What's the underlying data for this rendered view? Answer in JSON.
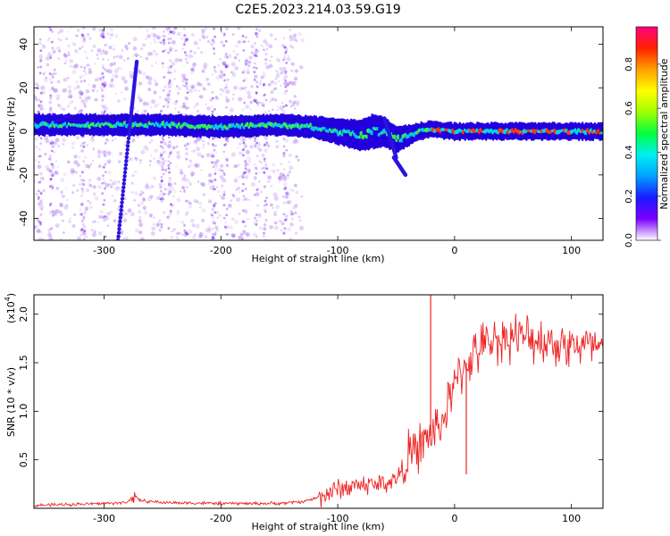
{
  "title": "C2E5.2023.214.03.59.G19",
  "colors": {
    "snr_line": "#ee2222",
    "band_core": "#00ddee",
    "band_edge": "#2200dd",
    "scatter": "#9955ee",
    "plot_bg": "#ffffff",
    "frame": "#000000"
  },
  "colorbar": {
    "label": "Normalized spectral amplitude",
    "ticks": [
      "0.0",
      "0.2",
      "0.4",
      "0.6",
      "0.8"
    ],
    "tick_values": [
      0.0,
      0.2,
      0.4,
      0.6,
      0.8
    ],
    "range": [
      0.0,
      0.97
    ],
    "stops": [
      "#ffffff",
      "#7a00ff",
      "#1a1aff",
      "#00a0ff",
      "#00f0f0",
      "#00ff40",
      "#a0ff00",
      "#ffff00",
      "#ffa000",
      "#ff2000",
      "#ff0080"
    ]
  },
  "chart_data": [
    {
      "type": "heatmap",
      "xlabel": "Height of straight line (km)",
      "ylabel": "Frequency (Hz)",
      "xlim": [
        -360,
        127
      ],
      "ylim": [
        -50,
        48
      ],
      "xticks": [
        -300,
        -200,
        -100,
        0,
        100
      ],
      "xtick_labels": [
        "-300",
        "-200",
        "-100",
        "0",
        "100"
      ],
      "yticks": [
        -40,
        -20,
        0,
        20,
        40
      ],
      "ytick_labels": [
        "-40",
        "-20",
        "0",
        "20",
        "40"
      ],
      "band": {
        "x": [
          -360,
          -300,
          -250,
          -200,
          -150,
          -120,
          -100,
          -80,
          -70,
          -60,
          -50,
          -40,
          -30,
          -20,
          0,
          50,
          100,
          127
        ],
        "center": [
          3,
          3,
          3,
          2,
          3,
          2,
          0,
          -2,
          0,
          0,
          -4,
          -2,
          0,
          1,
          0,
          0,
          0,
          0
        ],
        "width": [
          3,
          3,
          3,
          3,
          3,
          3,
          4,
          5,
          6,
          5,
          4,
          3,
          2,
          2,
          2,
          2,
          2,
          2
        ]
      },
      "streaks": [
        {
          "x": [
            -288,
            -278
          ],
          "y": [
            -50,
            2
          ]
        },
        {
          "x": [
            -278,
            -272
          ],
          "y": [
            2,
            32
          ]
        },
        {
          "x": [
            -60,
            -50
          ],
          "y": [
            6,
            -12
          ]
        },
        {
          "x": [
            -52,
            -42
          ],
          "y": [
            -12,
            -20
          ]
        }
      ]
    },
    {
      "type": "line",
      "xlabel": "Height of straight line (km)",
      "ylabel": "SNR (10 * v/v)",
      "ylabel_multiplier": "(x10",
      "ylabel_multiplier_exp": "4",
      "ylabel_multiplier_close": ")",
      "xlim": [
        -360,
        127
      ],
      "ylim": [
        0,
        2.2
      ],
      "xticks": [
        -300,
        -200,
        -100,
        0,
        100
      ],
      "xtick_labels": [
        "-300",
        "-200",
        "-100",
        "0",
        "100"
      ],
      "yticks": [
        0.5,
        1.0,
        1.5,
        2.0
      ],
      "ytick_labels": [
        "0.5",
        "1.0",
        "1.5",
        "2.0"
      ],
      "series": [
        {
          "x": [
            -360,
            -300,
            -280,
            -275,
            -270,
            -250,
            -200,
            -150,
            -130,
            -120,
            -110,
            -100,
            -90,
            -80,
            -70,
            -60,
            -50,
            -45,
            -40,
            -35,
            -30,
            -25,
            -20,
            -15,
            -10,
            -5,
            0,
            5,
            10,
            20,
            30,
            40,
            50,
            60,
            70,
            80,
            90,
            100,
            110,
            120,
            127
          ],
          "y": [
            0.03,
            0.05,
            0.06,
            0.14,
            0.08,
            0.06,
            0.05,
            0.05,
            0.07,
            0.1,
            0.15,
            0.2,
            0.22,
            0.25,
            0.24,
            0.26,
            0.3,
            0.4,
            0.55,
            0.55,
            0.65,
            0.7,
            0.75,
            0.85,
            0.9,
            1.1,
            1.25,
            1.4,
            1.5,
            1.62,
            1.72,
            1.75,
            1.78,
            1.75,
            1.75,
            1.72,
            1.7,
            1.68,
            1.68,
            1.65,
            1.62
          ],
          "spikes": [
            {
              "x": -20.5,
              "y": 2.2
            },
            {
              "x": 10,
              "y": 0.35
            }
          ]
        }
      ]
    }
  ]
}
